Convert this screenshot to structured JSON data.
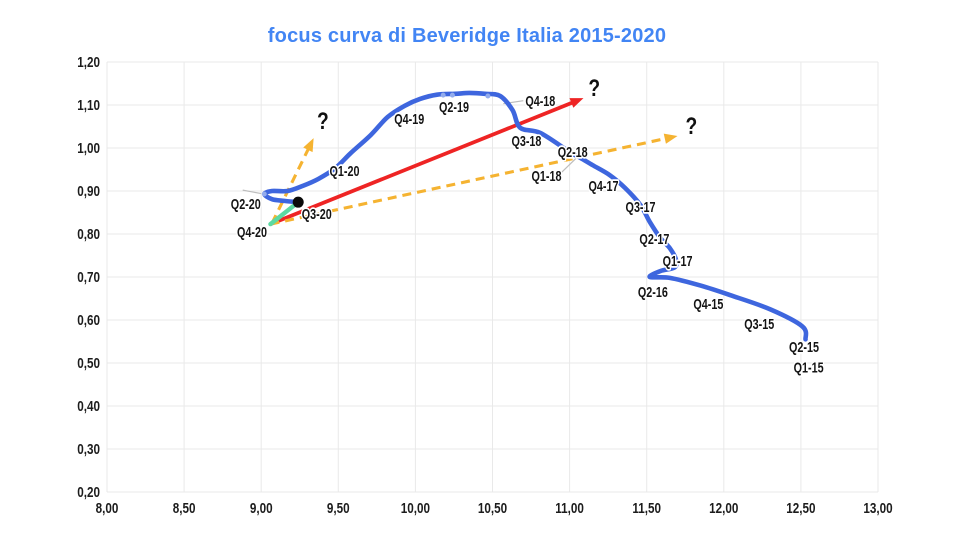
{
  "title": {
    "text": "focus curva di Beveridge Italia 2015-2020",
    "color": "#4285f4"
  },
  "chart_data": {
    "type": "line",
    "title": "focus curva di Beveridge Italia 2015-2020",
    "xlabel": "",
    "ylabel": "",
    "grid": true,
    "legend": "none",
    "x_axis": {
      "min": 8.0,
      "max": 13.0,
      "step": 0.5,
      "tick_labels": [
        "8,00",
        "8,50",
        "9,00",
        "9,50",
        "10,00",
        "10,50",
        "11,00",
        "11,50",
        "12,00",
        "12,50",
        "13,00"
      ]
    },
    "y_axis": {
      "min": 0.2,
      "max": 1.2,
      "step": 0.1,
      "tick_labels": [
        "0,20",
        "0,30",
        "0,40",
        "0,50",
        "0,60",
        "0,70",
        "0,80",
        "0,90",
        "1,00",
        "1,10",
        "1,20"
      ]
    },
    "colors": {
      "grid": "#e9e9e9",
      "curve": "#3e66de",
      "red_arrow": "#ee2424",
      "orange_arrow": "#f5b331",
      "teal_segment": "#5cd9a2",
      "title": "#4285f4",
      "label_text": "#141414",
      "axis_text": "#1c1c1c",
      "marker_light": "#93aced",
      "leader": "#bdbdbd",
      "dot": "#0a0a0a"
    },
    "series": [
      {
        "name": "curva di Beveridge Italia",
        "color": "#3e66de",
        "width": 4.6,
        "points": [
          [
            12.53,
            0.555
          ],
          [
            12.51,
            0.585
          ],
          [
            12.3,
            0.625
          ],
          [
            12.04,
            0.658
          ],
          [
            11.85,
            0.68
          ],
          [
            11.65,
            0.698
          ],
          [
            11.52,
            0.7
          ],
          [
            11.59,
            0.714
          ],
          [
            11.68,
            0.722
          ],
          [
            11.69,
            0.74
          ],
          [
            11.65,
            0.767
          ],
          [
            11.59,
            0.79
          ],
          [
            11.52,
            0.828
          ],
          [
            11.46,
            0.867
          ],
          [
            11.36,
            0.907
          ],
          [
            11.26,
            0.937
          ],
          [
            11.15,
            0.96
          ],
          [
            11.07,
            0.977
          ],
          [
            11.0,
            0.991
          ],
          [
            10.81,
            1.035
          ],
          [
            10.68,
            1.047
          ],
          [
            10.63,
            1.088
          ],
          [
            10.55,
            1.121
          ],
          [
            10.45,
            1.126
          ],
          [
            10.35,
            1.128
          ],
          [
            10.26,
            1.126
          ],
          [
            10.14,
            1.124
          ],
          [
            10.03,
            1.114
          ],
          [
            9.93,
            1.098
          ],
          [
            9.82,
            1.072
          ],
          [
            9.71,
            1.03
          ],
          [
            9.58,
            0.988
          ],
          [
            9.48,
            0.953
          ],
          [
            9.37,
            0.928
          ],
          [
            9.27,
            0.912
          ],
          [
            9.17,
            0.9
          ],
          [
            9.07,
            0.9
          ],
          [
            9.02,
            0.893
          ],
          [
            9.07,
            0.881
          ],
          [
            9.15,
            0.877
          ],
          [
            9.24,
            0.874
          ]
        ]
      }
    ],
    "point_labels": [
      {
        "text": "Q1-15",
        "x": 12.55,
        "y": 0.49
      },
      {
        "text": "Q2-15",
        "x": 12.52,
        "y": 0.537
      },
      {
        "text": "Q3-15",
        "x": 12.23,
        "y": 0.591
      },
      {
        "text": "Q4-15",
        "x": 11.9,
        "y": 0.637
      },
      {
        "text": "Q2-16",
        "x": 11.54,
        "y": 0.665
      },
      {
        "text": "Q1-17",
        "x": 11.7,
        "y": 0.737
      },
      {
        "text": "Q2-17",
        "x": 11.55,
        "y": 0.788
      },
      {
        "text": "Q3-17",
        "x": 11.46,
        "y": 0.863
      },
      {
        "text": "Q4-17",
        "x": 11.22,
        "y": 0.912
      },
      {
        "text": "Q1-18",
        "x": 10.85,
        "y": 0.935
      },
      {
        "text": "Q2-18",
        "x": 11.02,
        "y": 0.991
      },
      {
        "text": "Q3-18",
        "x": 10.72,
        "y": 1.016
      },
      {
        "text": "Q4-18",
        "x": 10.81,
        "y": 1.109
      },
      {
        "text": "Q2-19",
        "x": 10.25,
        "y": 1.095
      },
      {
        "text": "Q4-19",
        "x": 9.96,
        "y": 1.067
      },
      {
        "text": "Q1-20",
        "x": 9.54,
        "y": 0.947
      },
      {
        "text": "Q2-20",
        "x": 8.9,
        "y": 0.87
      },
      {
        "text": "Q3-20",
        "x": 9.36,
        "y": 0.846
      },
      {
        "text": "Q4-20",
        "x": 8.94,
        "y": 0.805
      }
    ],
    "extra_markers": [
      {
        "x": 9.02,
        "y": 0.893
      },
      {
        "x": 10.18,
        "y": 1.123
      },
      {
        "x": 10.24,
        "y": 1.123
      },
      {
        "x": 10.47,
        "y": 1.121
      }
    ],
    "current_point": {
      "x": 9.24,
      "y": 0.874
    },
    "last_move_segment": {
      "from": [
        9.24,
        0.874
      ],
      "to": [
        9.06,
        0.823
      ]
    },
    "scenario_arrows": [
      {
        "style": "solid",
        "color": "#ee2424",
        "from": [
          9.06,
          0.823
        ],
        "to": [
          11.09,
          1.116
        ]
      },
      {
        "style": "dashed",
        "color": "#f5b331",
        "from": [
          9.06,
          0.823
        ],
        "to": [
          11.7,
          1.028
        ]
      },
      {
        "style": "dashed",
        "color": "#f5b331",
        "from": [
          9.07,
          0.825
        ],
        "to": [
          9.34,
          1.023
        ]
      }
    ],
    "question_marks": [
      {
        "text": "?",
        "x": 11.16,
        "y": 1.14
      },
      {
        "text": "?",
        "x": 11.79,
        "y": 1.051
      },
      {
        "text": "?",
        "x": 9.4,
        "y": 1.063
      }
    ],
    "leader_lines": [
      {
        "from": [
          8.88,
          0.902
        ],
        "to": [
          9.0,
          0.894
        ]
      },
      {
        "from": [
          10.57,
          1.103
        ],
        "to": [
          10.7,
          1.11
        ]
      },
      {
        "from": [
          10.95,
          0.944
        ],
        "to": [
          11.05,
          0.979
        ]
      }
    ]
  }
}
